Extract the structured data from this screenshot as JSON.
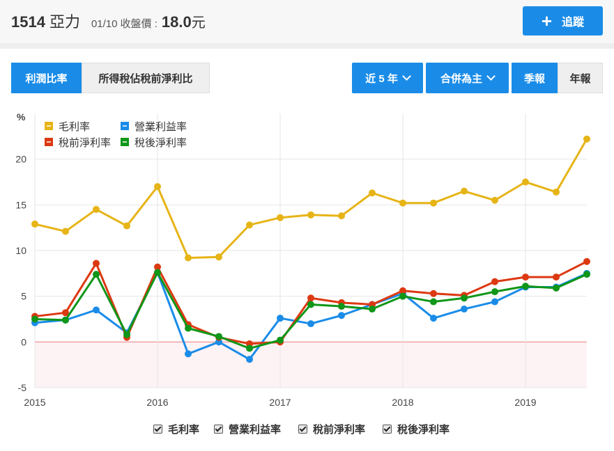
{
  "header": {
    "code": "1514",
    "name": "亞力",
    "date": "01/10",
    "price_label": "收盤價 :",
    "price": "18.0",
    "unit": "元",
    "track_label": "追蹤",
    "track_icon": "plus-icon"
  },
  "tabs": {
    "profit_ratio": "利潤比率",
    "tax_ratio": "所得稅佔稅前淨利比"
  },
  "controls": {
    "range": "近 5 年",
    "consolidation": "合併為主",
    "quarterly": "季報",
    "annual": "年報"
  },
  "colors": {
    "accent": "#1a8ce8",
    "gross": "#e6b416",
    "operating": "#1a8ce8",
    "pretax": "#dc3912",
    "aftertax": "#109618",
    "zero_line": "#f0a0a0",
    "negative_band": "#fdf3f5"
  },
  "chart_data": {
    "type": "line",
    "y_unit": "%",
    "ylim": [
      -5,
      25
    ],
    "yticks": [
      -5,
      0,
      5,
      10,
      15,
      20
    ],
    "xlim": [
      2015,
      2019.5
    ],
    "xticks": [
      2015,
      2016,
      2017,
      2018,
      2019
    ],
    "grid": true,
    "legend_position": "top-left",
    "x": [
      2015,
      2015.25,
      2015.5,
      2015.75,
      2016,
      2016.25,
      2016.5,
      2016.75,
      2017,
      2017.25,
      2017.5,
      2017.75,
      2018,
      2018.25,
      2018.5,
      2018.75,
      2019,
      2019.25,
      2019.5
    ],
    "series": [
      {
        "name": "毛利率",
        "color": "#e6b416",
        "values": [
          12.9,
          12.1,
          14.5,
          12.7,
          17.0,
          9.2,
          9.3,
          12.8,
          13.6,
          13.9,
          13.8,
          16.3,
          15.2,
          15.2,
          16.5,
          15.5,
          17.5,
          16.4,
          22.2
        ]
      },
      {
        "name": "營業利益率",
        "color": "#1a8ce8",
        "values": [
          2.1,
          2.4,
          3.5,
          1.0,
          7.6,
          -1.3,
          0.0,
          -1.9,
          2.6,
          2.0,
          2.9,
          4.1,
          5.3,
          2.6,
          3.6,
          4.4,
          6.0,
          6.0,
          7.5
        ]
      },
      {
        "name": "稅前淨利率",
        "color": "#dc3912",
        "values": [
          2.8,
          3.2,
          8.6,
          0.5,
          8.2,
          1.9,
          0.5,
          -0.2,
          0.0,
          4.8,
          4.3,
          4.1,
          5.6,
          5.3,
          5.1,
          6.6,
          7.1,
          7.1,
          8.8
        ]
      },
      {
        "name": "稅後淨利率",
        "color": "#109618",
        "values": [
          2.5,
          2.4,
          7.4,
          0.8,
          7.6,
          1.5,
          0.6,
          -0.7,
          0.2,
          4.1,
          3.9,
          3.6,
          5.0,
          4.4,
          4.8,
          5.5,
          6.1,
          5.9,
          7.4
        ]
      }
    ]
  }
}
